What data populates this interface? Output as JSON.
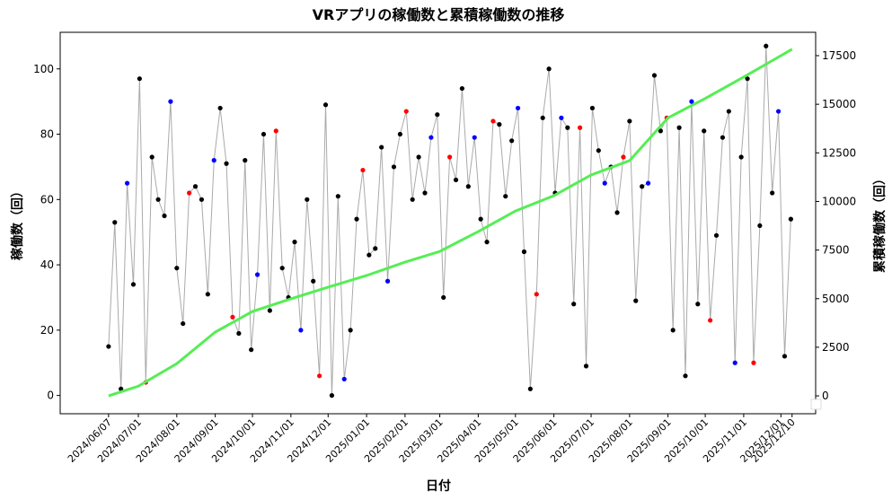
{
  "chart_data": {
    "type": "line",
    "title": "VRアプリの稼働数と累積稼働数の推移",
    "xlabel": "日付",
    "ylabel": "稼働数（回）",
    "y2label": "累積稼働数（回）",
    "xlim": [
      "2024/04/29",
      "2025/12/29"
    ],
    "xticks": [
      "2024/06/07",
      "2024/07/01",
      "2024/08/01",
      "2024/09/01",
      "2024/10/01",
      "2024/11/01",
      "2024/12/01",
      "2025/01/01",
      "2025/02/01",
      "2025/03/01",
      "2025/04/01",
      "2025/05/01",
      "2025/06/01",
      "2025/07/01",
      "2025/08/01",
      "2025/09/01",
      "2025/10/01",
      "2025/11/01",
      "2025/12/01",
      "2025/12/10"
    ],
    "ylim": [
      -5.6,
      111.2
    ],
    "yticks": [
      0,
      20,
      40,
      60,
      80,
      100
    ],
    "y2lim": [
      -920,
      18700
    ],
    "y2ticks": [
      0,
      2500,
      5000,
      7500,
      10000,
      12500,
      15000,
      17500
    ],
    "series": [
      {
        "color": "#aaaaaa",
        "x": [
          "2024/06/07",
          "2024/06/12",
          "2024/06/17",
          "2024/06/22",
          "2024/06/27",
          "2024/07/02",
          "2024/07/07",
          "2024/07/12",
          "2024/07/17",
          "2024/07/22",
          "2024/07/27",
          "2024/08/01",
          "2024/08/06",
          "2024/08/11",
          "2024/08/16",
          "2024/08/21",
          "2024/08/26",
          "2024/08/31",
          "2024/09/05",
          "2024/09/10",
          "2024/09/15",
          "2024/09/20",
          "2024/09/25",
          "2024/09/30",
          "2024/10/05",
          "2024/10/10",
          "2024/10/15",
          "2024/10/20",
          "2024/10/25",
          "2024/10/30",
          "2024/11/04",
          "2024/11/09",
          "2024/11/14",
          "2024/11/19",
          "2024/11/24",
          "2024/11/29",
          "2024/12/04",
          "2024/12/09",
          "2024/12/14",
          "2024/12/19",
          "2024/12/24",
          "2024/12/29",
          "2025/01/03",
          "2025/01/08",
          "2025/01/13",
          "2025/01/18",
          "2025/01/23",
          "2025/01/28",
          "2025/02/02",
          "2025/02/07",
          "2025/02/12",
          "2025/02/17",
          "2025/02/22",
          "2025/02/27",
          "2025/03/04",
          "2025/03/09",
          "2025/03/14",
          "2025/03/19",
          "2025/03/24",
          "2025/03/29",
          "2025/04/03",
          "2025/04/08",
          "2025/04/13",
          "2025/04/18",
          "2025/04/23",
          "2025/04/28",
          "2025/05/03",
          "2025/05/08",
          "2025/05/13",
          "2025/05/18",
          "2025/05/23",
          "2025/05/28",
          "2025/06/02",
          "2025/06/07",
          "2025/06/12",
          "2025/06/17",
          "2025/06/22",
          "2025/06/27",
          "2025/07/02",
          "2025/07/07",
          "2025/07/12",
          "2025/07/17",
          "2025/07/22",
          "2025/07/27",
          "2025/08/01",
          "2025/08/06",
          "2025/08/11",
          "2025/08/16",
          "2025/08/21",
          "2025/08/26",
          "2025/08/31",
          "2025/09/05",
          "2025/09/10",
          "2025/09/15",
          "2025/09/20",
          "2025/09/25",
          "2025/09/30",
          "2025/10/05",
          "2025/10/10",
          "2025/10/15",
          "2025/10/20",
          "2025/10/25",
          "2025/10/30",
          "2025/11/04",
          "2025/11/09",
          "2025/11/14",
          "2025/11/19",
          "2025/11/24",
          "2025/11/29",
          "2025/12/04",
          "2025/12/09"
        ],
        "values": [
          15,
          53,
          2,
          65,
          34,
          97,
          4,
          73,
          60,
          55,
          90,
          39,
          22,
          62,
          64,
          60,
          31,
          72,
          88,
          71,
          24,
          19,
          72,
          14,
          37,
          80,
          26,
          81,
          39,
          30,
          47,
          20,
          60,
          35,
          6,
          89,
          0,
          61,
          5,
          20,
          54,
          69,
          43,
          45,
          76,
          35,
          70,
          80,
          87,
          60,
          73,
          62,
          79,
          86,
          30,
          73,
          66,
          94,
          64,
          79,
          54,
          47,
          84,
          83,
          61,
          78,
          88,
          44,
          2,
          31,
          85,
          100,
          62,
          85,
          82,
          28,
          82,
          9,
          88,
          75,
          65,
          70,
          56,
          73,
          84,
          29,
          64,
          65,
          98,
          81,
          85,
          20,
          82,
          6,
          90,
          28,
          81,
          23,
          49,
          79,
          87,
          10,
          73,
          97,
          10,
          52,
          107,
          62,
          87,
          12,
          54
        ],
        "point_colors": [
          "black",
          "black",
          "black",
          "blue",
          "black",
          "black",
          "red",
          "black",
          "black",
          "black",
          "blue",
          "black",
          "black",
          "red",
          "black",
          "black",
          "black",
          "blue",
          "black",
          "black",
          "red",
          "black",
          "black",
          "black",
          "blue",
          "black",
          "black",
          "red",
          "black",
          "black",
          "black",
          "blue",
          "black",
          "black",
          "red",
          "black",
          "black",
          "black",
          "blue",
          "black",
          "black",
          "red",
          "black",
          "black",
          "black",
          "blue",
          "black",
          "black",
          "red",
          "black",
          "black",
          "black",
          "blue",
          "black",
          "black",
          "red",
          "black",
          "black",
          "black",
          "blue",
          "black",
          "black",
          "red",
          "black",
          "black",
          "black",
          "blue",
          "black",
          "black",
          "red",
          "black",
          "black",
          "black",
          "blue",
          "black",
          "black",
          "red",
          "black",
          "black",
          "black",
          "blue",
          "black",
          "black",
          "red",
          "black",
          "black",
          "black",
          "blue",
          "black",
          "black",
          "red",
          "black",
          "black",
          "black",
          "blue",
          "black",
          "black",
          "red",
          "black",
          "black",
          "black",
          "blue",
          "black",
          "black",
          "red",
          "black",
          "black",
          "black",
          "blue",
          "black",
          "black",
          "red",
          "black"
        ]
      },
      {
        "color": "#55ee55",
        "axis": "y2",
        "x": [
          "2024/06/07",
          "2024/07/01",
          "2024/08/01",
          "2024/09/01",
          "2024/10/01",
          "2024/11/01",
          "2024/12/01",
          "2025/01/01",
          "2025/02/01",
          "2025/03/01",
          "2025/04/01",
          "2025/05/01",
          "2025/06/01",
          "2025/07/01",
          "2025/08/01",
          "2025/09/01",
          "2025/10/01",
          "2025/11/01",
          "2025/12/01",
          "2025/12/10"
        ],
        "values": [
          0,
          500,
          1660,
          3280,
          4340,
          4990,
          5590,
          6190,
          6880,
          7430,
          8450,
          9510,
          10300,
          11360,
          12100,
          14300,
          15300,
          16400,
          17500,
          17830
        ]
      }
    ]
  }
}
